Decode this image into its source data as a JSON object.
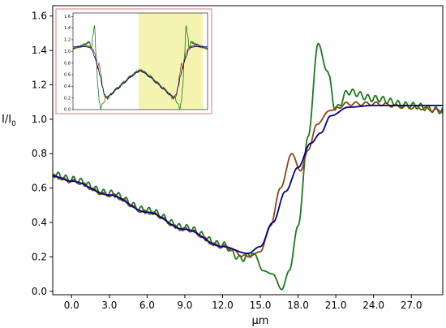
{
  "chart_data": {
    "type": "line",
    "xlabel": "μm",
    "ylabel_main": "I/I",
    "ylabel_sub": "0",
    "xlim": [
      -1.5,
      29.5
    ],
    "ylim": [
      -0.02,
      1.66
    ],
    "x_ticks": [
      "0.0",
      "3.0",
      "6.0",
      "9.0",
      "12.0",
      "15.0",
      "18.0",
      "21.0",
      "24.0",
      "27.0"
    ],
    "y_ticks": [
      "0.0",
      "0.2",
      "0.4",
      "0.6",
      "0.8",
      "1.0",
      "1.2",
      "1.4",
      "1.6"
    ],
    "grid": false,
    "series": [
      {
        "color": "#1a7a1a",
        "points": [
          [
            -1.5,
            0.68
          ],
          [
            0,
            0.65
          ],
          [
            3,
            0.57
          ],
          [
            6,
            0.47
          ],
          [
            9,
            0.37
          ],
          [
            12,
            0.27
          ],
          [
            13.5,
            0.19
          ],
          [
            14.5,
            0.22
          ],
          [
            15.2,
            0.12
          ],
          [
            16,
            0.1
          ],
          [
            16.7,
            0.01
          ],
          [
            17.3,
            0.12
          ],
          [
            18,
            0.38
          ],
          [
            18.8,
            0.9
          ],
          [
            19.6,
            1.44
          ],
          [
            20.3,
            1.28
          ],
          [
            21,
            1.06
          ],
          [
            22,
            1.16
          ],
          [
            24,
            1.12
          ],
          [
            27,
            1.08
          ],
          [
            29.5,
            1.05
          ]
        ],
        "ripple": {
          "period": 0.6,
          "amp": 0.018,
          "regions": [
            [
              -1.5,
              14.3
            ],
            [
              20.5,
              29.5
            ]
          ]
        }
      },
      {
        "color": "#8b4513",
        "points": [
          [
            -1.5,
            0.67
          ],
          [
            0,
            0.64
          ],
          [
            3,
            0.56
          ],
          [
            6,
            0.46
          ],
          [
            9,
            0.36
          ],
          [
            12,
            0.26
          ],
          [
            14,
            0.2
          ],
          [
            15,
            0.23
          ],
          [
            15.8,
            0.38
          ],
          [
            16.6,
            0.6
          ],
          [
            17.5,
            0.8
          ],
          [
            18.2,
            0.7
          ],
          [
            18.8,
            0.82
          ],
          [
            19.5,
            0.97
          ],
          [
            20.5,
            1.05
          ],
          [
            22,
            1.09
          ],
          [
            24,
            1.09
          ],
          [
            27,
            1.07
          ],
          [
            29.5,
            1.05
          ]
        ],
        "ripple": {
          "period": 0.8,
          "amp": 0.01,
          "regions": [
            [
              -1.5,
              14.0
            ],
            [
              21.0,
              29.5
            ]
          ]
        }
      },
      {
        "color": "#00008b",
        "points": [
          [
            -1.5,
            0.67
          ],
          [
            0,
            0.64
          ],
          [
            3,
            0.56
          ],
          [
            6,
            0.46
          ],
          [
            9,
            0.36
          ],
          [
            12,
            0.26
          ],
          [
            14,
            0.22
          ],
          [
            15,
            0.26
          ],
          [
            16,
            0.4
          ],
          [
            17,
            0.58
          ],
          [
            18,
            0.72
          ],
          [
            19,
            0.86
          ],
          [
            19.8,
            0.92
          ],
          [
            20.6,
            1.02
          ],
          [
            22,
            1.07
          ],
          [
            24,
            1.08
          ],
          [
            27,
            1.08
          ],
          [
            29.5,
            1.08
          ]
        ]
      }
    ],
    "inset": {
      "y_ticks": [
        "0.0",
        "0.2",
        "0.4",
        "0.6",
        "0.8",
        "1.0",
        "1.2",
        "1.4",
        "1.6"
      ],
      "highlight_color": "#f4f4b0",
      "frame_color": "#e07a7a"
    }
  }
}
